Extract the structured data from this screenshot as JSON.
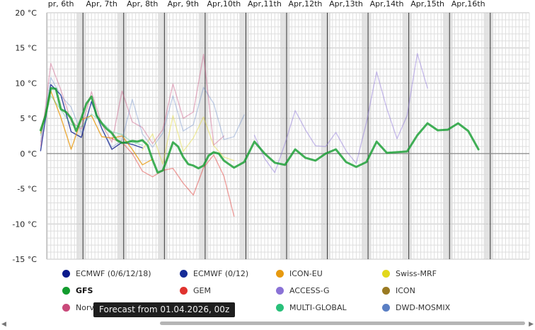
{
  "chart_data": {
    "type": "line",
    "ylim": [
      -15,
      20
    ],
    "y_ticks": [
      {
        "value": 20,
        "label": "20 °C"
      },
      {
        "value": 15,
        "label": "15 °C"
      },
      {
        "value": 10,
        "label": "10 °C"
      },
      {
        "value": 5,
        "label": "5 °C"
      },
      {
        "value": 0,
        "label": "0 °C"
      },
      {
        "value": -5,
        "label": "-5 °C"
      },
      {
        "value": -10,
        "label": "-10 °C"
      },
      {
        "value": -15,
        "label": "-15 °C"
      }
    ],
    "x_range": [
      0.15,
      12.0
    ],
    "x_ticks": [
      {
        "x": 0.5,
        "label": "pr, 6th"
      },
      {
        "x": 1.5,
        "label": "Apr, 7th"
      },
      {
        "x": 2.5,
        "label": "Apr, 8th"
      },
      {
        "x": 3.5,
        "label": "Apr, 9th"
      },
      {
        "x": 4.5,
        "label": "Apr,10th"
      },
      {
        "x": 5.5,
        "label": "Apr,11th"
      },
      {
        "x": 6.5,
        "label": "Apr,12th"
      },
      {
        "x": 7.5,
        "label": "Apr,13th"
      },
      {
        "x": 8.5,
        "label": "Apr,14th"
      },
      {
        "x": 9.5,
        "label": "Apr,15th"
      },
      {
        "x": 10.5,
        "label": "Apr,16th"
      }
    ],
    "grid": true,
    "series": [
      {
        "name": "GFS",
        "color": "#139c2e",
        "emphasis": true,
        "x": [
          0,
          0.125,
          0.25,
          0.375,
          0.5,
          0.625,
          0.75,
          0.875,
          1,
          1.125,
          1.25,
          1.375,
          1.5,
          1.625,
          1.75,
          1.875,
          2,
          2.125,
          2.25,
          2.375,
          2.5,
          2.625,
          2.75,
          2.875,
          3,
          3.125,
          3.25,
          3.375,
          3.5,
          3.625,
          3.75,
          3.875,
          4,
          4.125,
          4.25,
          4.375,
          4.5,
          4.625,
          4.75,
          4.875,
          5,
          5.25,
          5.5,
          5.75,
          6,
          6.25,
          6.5,
          6.75,
          7,
          7.25,
          7.5,
          7.75,
          8,
          8.25,
          8.5,
          8.75,
          9,
          9.25,
          9.5,
          9.75,
          10,
          10.25,
          10.5,
          10.75,
          11,
          11.25,
          11.5,
          11.75
        ],
        "y": [
          3.3,
          5.5,
          9.3,
          9.2,
          6.3,
          5.9,
          5.0,
          3.2,
          5.0,
          7.1,
          8.1,
          5.4,
          4.3,
          3.5,
          2.9,
          1.9,
          1.5,
          1.6,
          1.8,
          1.7,
          1.9,
          1.2,
          -0.9,
          -2.7,
          -2.4,
          -0.5,
          1.6,
          1.0,
          -0.5,
          -1.5,
          -1.7,
          -2.1,
          -1.7,
          -0.3,
          0.2,
          0.0,
          -1.0,
          -1.5,
          -2.0,
          -1.6,
          -1.2,
          1.7,
          0.0,
          -1.3,
          -1.6,
          0.6,
          -0.6,
          -1.0,
          0.0,
          0.6,
          -1.2,
          -1.9,
          -1.2,
          1.7,
          0.1,
          0.2,
          0.3,
          2.6,
          4.3,
          3.3,
          3.4,
          4.3,
          3.2,
          0.6,
          null,
          null,
          null,
          null
        ]
      },
      {
        "name": "ECMWF (0/6/12/18)",
        "color": "#0b1a8c",
        "x": [
          0,
          0.25,
          0.5,
          0.75,
          1,
          1.25,
          1.5,
          1.75,
          2,
          2.25,
          2.5
        ],
        "y": [
          0.4,
          9.8,
          8.3,
          3.1,
          2.3,
          7.4,
          3.6,
          0.6,
          1.6,
          1.3,
          0.8
        ]
      },
      {
        "name": "ICON-EU",
        "color": "#e79a10",
        "x": [
          0,
          0.25,
          0.5,
          0.75,
          1,
          1.25,
          1.5,
          1.75,
          2,
          2.25,
          2.5,
          2.75
        ],
        "y": [
          2.9,
          8.9,
          5.1,
          0.6,
          4.8,
          5.4,
          2.4,
          2.2,
          2.5,
          0.6,
          -1.6,
          -0.8
        ]
      },
      {
        "name": "GEM",
        "color": "#e0332f",
        "opacity": 0.45,
        "x": [
          1.75,
          2,
          2.25,
          2.5,
          2.75,
          3,
          3.25,
          3.5,
          3.75,
          4,
          4.25,
          4.5,
          4.75
        ],
        "y": [
          2.1,
          1.6,
          0.0,
          -2.5,
          -3.3,
          -2.4,
          -2.1,
          -4.2,
          -5.9,
          -2.0,
          -0.2,
          -3.2,
          -8.9
        ]
      },
      {
        "name": "ACCESS-G",
        "color": "#8a72d6",
        "opacity": 0.45,
        "x": [
          5.25,
          5.5,
          5.75,
          6,
          6.25,
          6.5,
          6.75,
          7,
          7.25,
          7.5,
          7.75,
          8,
          8.25,
          8.5,
          8.75,
          9,
          9.25,
          9.5
        ],
        "y": [
          2.6,
          -0.7,
          -2.7,
          1.4,
          6.1,
          3.4,
          1.1,
          1.0,
          3.0,
          0.4,
          -1.4,
          4.4,
          11.6,
          6.4,
          2.1,
          5.4,
          14.2,
          9.3
        ]
      },
      {
        "name": "Swiss-MRF",
        "color": "#e2d81c",
        "opacity": 0.4,
        "x": [
          2.5,
          2.75,
          3,
          3.25,
          3.5,
          3.75,
          4,
          4.25,
          4.5,
          4.75
        ],
        "y": [
          0.5,
          2.8,
          -1.5,
          5.4,
          0.3,
          2.2,
          5.2,
          1.1,
          -0.5,
          -1.0
        ]
      },
      {
        "name": "Norway",
        "color": "#c94a7a",
        "opacity": 0.4,
        "x": [
          0,
          0.25,
          0.5,
          0.75,
          1,
          1.25,
          1.5,
          1.75,
          2,
          2.25,
          2.5,
          2.75,
          3,
          3.25,
          3.5,
          3.75,
          4,
          4.25,
          4.5
        ],
        "y": [
          1.1,
          12.8,
          9.0,
          4.6,
          3.5,
          8.8,
          4.2,
          1.6,
          8.9,
          4.5,
          3.7,
          1.4,
          3.4,
          9.9,
          5.0,
          5.9,
          14.1,
          1.2,
          2.5
        ]
      },
      {
        "name": "DWD-MOSMIX",
        "color": "#5a7fc4",
        "opacity": 0.35,
        "x": [
          0,
          0.25,
          0.5,
          0.75,
          1,
          1.25,
          1.5,
          1.75,
          2,
          2.25,
          2.5,
          2.75,
          3,
          3.25,
          3.5,
          3.75,
          4,
          4.25,
          4.5,
          4.75,
          5
        ],
        "y": [
          1.7,
          10.8,
          8.2,
          6.6,
          2.9,
          7.2,
          3.6,
          0.9,
          1.9,
          7.7,
          2.8,
          0.9,
          2.9,
          8.2,
          3.2,
          4.1,
          9.4,
          7.1,
          2.0,
          2.4,
          5.5
        ]
      },
      {
        "name": "MULTI-GLOBAL",
        "color": "#29c07a",
        "opacity": 0.35,
        "x": [
          0,
          0.25,
          0.5,
          0.75,
          1,
          1.25,
          1.5,
          1.75,
          2,
          2.25,
          2.5
        ],
        "y": [
          2.6,
          8.2,
          6.2,
          4.1,
          3.8,
          5.6,
          4.5,
          3.1,
          2.7,
          1.6,
          1.2
        ]
      }
    ]
  },
  "legend": [
    {
      "label": "ECMWF (0/6/12/18)",
      "color": "#0b1a8c",
      "bold": false
    },
    {
      "label": "ECMWF (0/12)",
      "color": "#152b97",
      "bold": false
    },
    {
      "label": "ICON-EU",
      "color": "#e79a10",
      "bold": false
    },
    {
      "label": "Swiss-MRF",
      "color": "#e2d81c",
      "bold": false
    },
    {
      "label": "GFS",
      "color": "#139c2e",
      "bold": true
    },
    {
      "label": "GEM",
      "color": "#e0332f",
      "bold": false
    },
    {
      "label": "ACCESS-G",
      "color": "#8a72d6",
      "bold": false
    },
    {
      "label": "ICON",
      "color": "#9a7a22",
      "bold": false
    },
    {
      "label": "Norv",
      "color": "#c94a7a",
      "bold": false
    },
    {
      "label": "MULTI-GLOBAL",
      "color": "#29c07a",
      "bold": false
    },
    {
      "label": "DWD-MOSMIX",
      "color": "#5a7fc4",
      "bold": false
    }
  ],
  "tooltip": "Forecast from 01.04.2026, 00z",
  "scrollbar": {
    "left_arrow": "◀",
    "right_arrow": "▶"
  }
}
